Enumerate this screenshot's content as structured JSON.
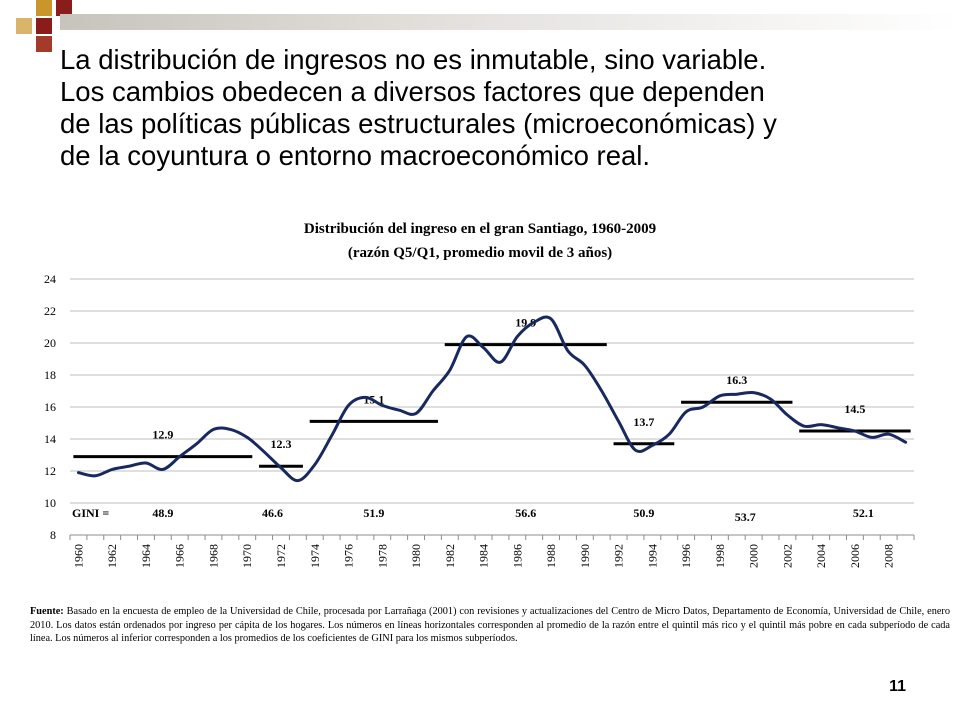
{
  "slide": {
    "heading_lines": [
      "La distribución de ingresos no es inmutable, sino variable.",
      "Los cambios obedecen a diversos factores que dependen",
      "de las políticas públicas estructurales (microeconómicas) y",
      "de la coyuntura o entorno macroeconómico real."
    ],
    "source_label": "Fuente:",
    "source_text": " Basado en la encuesta de empleo de la Universidad de Chile, procesada por Larrañaga (2001) con revisiones y actualizaciones del Centro de Micro Datos, Departamento de Economía, Universidad de Chile, enero 2010. Los datos están ordenados por ingreso per cápita de los hogares. Los números en líneas horizontales corresponden al promedio de la razón entre el quintil más rico y el quintil más pobre en cada subperíodo de cada línea. Los números al inferior corresponden a los promedios de los coeficientes de GINI para los mismos subperíodos.",
    "page_number": "11",
    "colors": {
      "series": "#17295e",
      "average_lines": "#000000",
      "grid": "#bfbfbf",
      "deco_red": "#8b1c1c",
      "deco_gold": "#c9962c"
    }
  },
  "chart_data": {
    "type": "line",
    "title": "Distribución del ingreso en el gran Santiago, 1960-2009",
    "subtitle": "(razón Q5/Q1, promedio movil de 3 años)",
    "x_tick_labels": [
      "1960",
      "1962",
      "1964",
      "1966",
      "1968",
      "1970",
      "1972",
      "1974",
      "1976",
      "1978",
      "1980",
      "1982",
      "1984",
      "1986",
      "1988",
      "1990",
      "1992",
      "1994",
      "1996",
      "1998",
      "2000",
      "2002",
      "2004",
      "2006",
      "2008"
    ],
    "xlim": [
      1960,
      2009
    ],
    "ylim": [
      8,
      24
    ],
    "y_ticks": [
      8,
      10,
      12,
      14,
      16,
      18,
      20,
      22,
      24
    ],
    "grid": "horizontal",
    "series": [
      {
        "x": [
          1960,
          1961,
          1962,
          1963,
          1964,
          1965,
          1966,
          1967,
          1968,
          1969,
          1970,
          1971,
          1972,
          1973,
          1974,
          1975,
          1976,
          1977,
          1978,
          1979,
          1980,
          1981,
          1982,
          1983,
          1984,
          1985,
          1986,
          1987,
          1988,
          1989,
          1990,
          1991,
          1992,
          1993,
          1994,
          1995,
          1996,
          1997,
          1998,
          1999,
          2000,
          2001,
          2002,
          2003,
          2004,
          2005,
          2006,
          2007,
          2008,
          2009
        ],
        "y": [
          11.9,
          11.7,
          12.1,
          12.3,
          12.5,
          12.1,
          12.9,
          13.7,
          14.6,
          14.6,
          14.1,
          13.2,
          12.2,
          11.4,
          12.4,
          14.2,
          16.1,
          16.6,
          16.1,
          15.8,
          15.6,
          17.0,
          18.3,
          20.4,
          19.7,
          18.8,
          20.4,
          21.3,
          21.5,
          19.5,
          18.6,
          17.0,
          15.1,
          13.3,
          13.6,
          14.3,
          15.7,
          16.0,
          16.7,
          16.8,
          16.9,
          16.5,
          15.5,
          14.8,
          14.9,
          14.7,
          14.5,
          14.1,
          14.3,
          13.8
        ]
      }
    ],
    "period_averages": [
      {
        "from": 1960,
        "to": 1970,
        "value": 12.9,
        "label": "12.9"
      },
      {
        "from": 1971,
        "to": 1973,
        "value": 12.3,
        "label": "12.3"
      },
      {
        "from": 1974,
        "to": 1981,
        "value": 15.1,
        "label": "15.1"
      },
      {
        "from": 1982,
        "to": 1991,
        "value": 19.9,
        "label": "19.9"
      },
      {
        "from": 1992,
        "to": 1995,
        "value": 13.7,
        "label": "13.7"
      },
      {
        "from": 1996,
        "to": 2002,
        "value": 16.3,
        "label": "16.3"
      },
      {
        "from": 2003,
        "to": 2009,
        "value": 14.5,
        "label": "14.5"
      }
    ],
    "gini_label": "GINI =",
    "gini_values": [
      {
        "x": 1965,
        "label": "48.9"
      },
      {
        "x": 1971.5,
        "label": "46.6"
      },
      {
        "x": 1977.5,
        "label": "51.9"
      },
      {
        "x": 1986.5,
        "label": "56.6"
      },
      {
        "x": 1993.5,
        "label": "50.9"
      },
      {
        "x": 1999.5,
        "label": "53.7"
      },
      {
        "x": 2006.5,
        "label": "52.1"
      }
    ]
  }
}
